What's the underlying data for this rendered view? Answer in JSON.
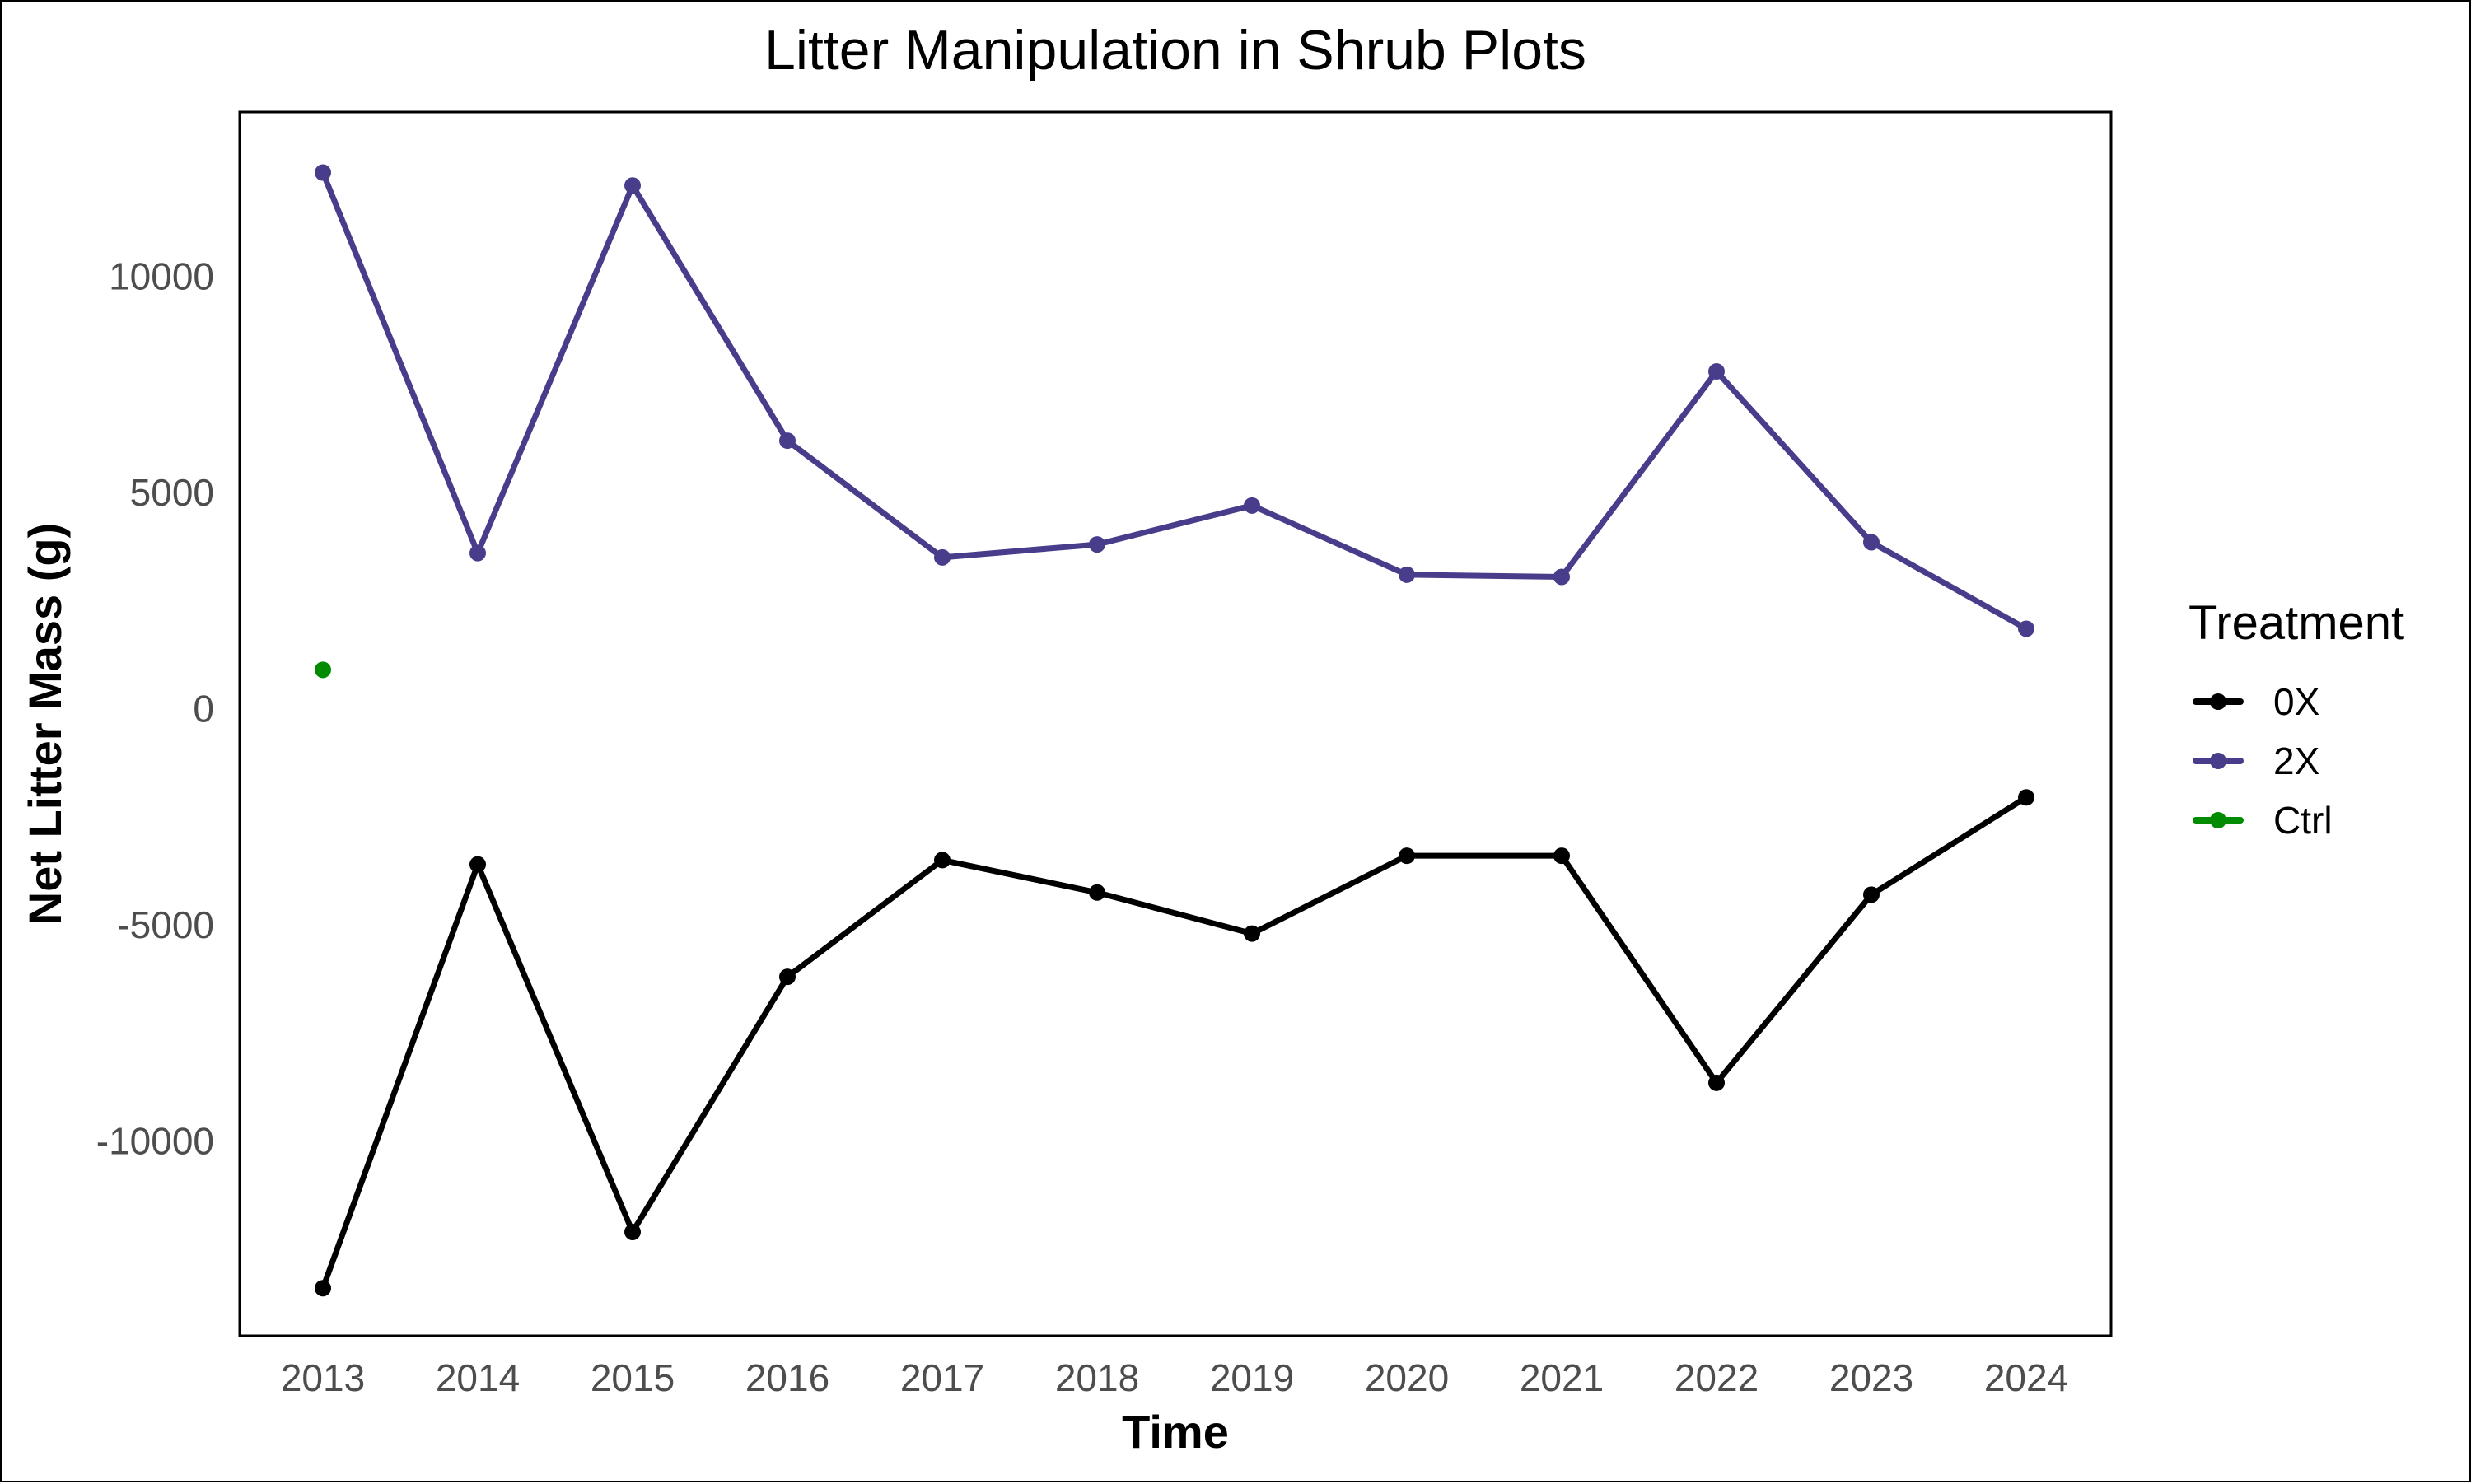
{
  "chart_data": {
    "type": "line",
    "title": "Litter Manipulation in Shrub Plots",
    "xlabel": "Time",
    "ylabel": "Net Litter Mass (g)",
    "categories": [
      "2013",
      "2014",
      "2015",
      "2016",
      "2017",
      "2018",
      "2019",
      "2020",
      "2021",
      "2022",
      "2023",
      "2024"
    ],
    "ylim": [
      -14500,
      13800
    ],
    "yticks": [
      -10000,
      -5000,
      0,
      5000,
      10000
    ],
    "ytick_labels": [
      "-10000",
      "-5000",
      "0",
      "5000",
      "10000"
    ],
    "grid": false,
    "legend": {
      "title": "Treatment",
      "position": "right"
    },
    "series": [
      {
        "name": "0X",
        "color": "#000000",
        "values": [
          -13400,
          -3600,
          -12100,
          -6200,
          -3500,
          -4250,
          -5200,
          -3400,
          -3400,
          -8650,
          -4300,
          -2050
        ]
      },
      {
        "name": "2X",
        "color": "#483d8b",
        "values": [
          12400,
          3600,
          12100,
          6200,
          3500,
          3800,
          4700,
          3100,
          3050,
          7800,
          3850,
          1850
        ]
      },
      {
        "name": "Ctrl",
        "color": "#008b00",
        "values": [
          900,
          null,
          null,
          null,
          null,
          null,
          null,
          null,
          null,
          null,
          null,
          null
        ]
      }
    ]
  }
}
